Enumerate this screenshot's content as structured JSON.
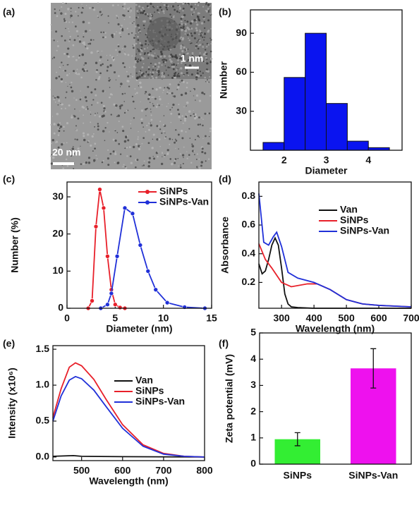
{
  "chart_data": [
    {
      "type": "image",
      "panel": "(a)",
      "scale_bar": "20 nm",
      "inset_scale_bar": "1 nm"
    },
    {
      "type": "histogram",
      "panel": "(b)",
      "xlabel": "Diameter",
      "ylabel": "Number",
      "bins": [
        1.5,
        2,
        2.5,
        3,
        3.5,
        4,
        4.5
      ],
      "values": [
        6,
        56,
        90,
        36,
        7,
        2
      ],
      "color": "#0a14f0",
      "xlim": [
        1.2,
        4.8
      ],
      "xticks": [
        2,
        3,
        4
      ],
      "ylim": [
        0,
        108
      ],
      "yticks": [
        30,
        60,
        90
      ]
    },
    {
      "type": "line",
      "panel": "(c)",
      "xlabel": "Diameter (nm)",
      "ylabel": "Number (%)",
      "markers": true,
      "xlim": [
        0,
        15
      ],
      "xticks": [
        0,
        5,
        10,
        15
      ],
      "ylim": [
        0,
        34
      ],
      "yticks": [
        0,
        10,
        20,
        30
      ],
      "series": [
        {
          "name": "SiNPs",
          "color": "#e8202a",
          "x": [
            2.2,
            2.6,
            3.0,
            3.4,
            3.8,
            4.2,
            4.6,
            5.0,
            5.5,
            6.0
          ],
          "values": [
            0,
            2,
            22,
            32,
            27,
            14,
            5,
            1,
            0.2,
            0
          ]
        },
        {
          "name": "SiNPs-Van",
          "color": "#2030d8",
          "x": [
            3.5,
            4.2,
            4.6,
            5.2,
            6.0,
            6.8,
            7.6,
            8.4,
            9.2,
            10.4,
            12.2,
            14.3
          ],
          "values": [
            0,
            1,
            4,
            14,
            27,
            25.5,
            17,
            10,
            5,
            1.5,
            0.3,
            0
          ]
        }
      ]
    },
    {
      "type": "line",
      "panel": "(d)",
      "xlabel": "Wavelength (nm)",
      "ylabel": "Absorbance",
      "markers": false,
      "xlim": [
        230,
        700
      ],
      "xticks": [
        300,
        400,
        500,
        600,
        700
      ],
      "ylim": [
        0.02,
        0.9
      ],
      "yticks": [
        {
          "value": 0.2,
          "label": "0.2"
        },
        {
          "value": 0.4,
          "label": "0.4"
        },
        {
          "value": 0.6,
          "label": "0.6"
        },
        {
          "value": 0.8,
          "label": "0.8"
        }
      ],
      "series": [
        {
          "name": "Van",
          "color": "#111111",
          "x": [
            230,
            240,
            250,
            260,
            270,
            280,
            290,
            300,
            310,
            320,
            330,
            350,
            400,
            500,
            700
          ],
          "values": [
            0.33,
            0.26,
            0.28,
            0.36,
            0.46,
            0.51,
            0.46,
            0.3,
            0.12,
            0.05,
            0.03,
            0.025,
            0.02,
            0.02,
            0.02
          ]
        },
        {
          "name": "SiNPs",
          "color": "#e8202a",
          "x": [
            230,
            250,
            270,
            300,
            330,
            380,
            410,
            450,
            500,
            550,
            600,
            700
          ],
          "values": [
            0.47,
            0.36,
            0.3,
            0.2,
            0.17,
            0.19,
            0.19,
            0.15,
            0.08,
            0.05,
            0.04,
            0.03
          ]
        },
        {
          "name": "SiNPs-Van",
          "color": "#2030d8",
          "x": [
            230,
            245,
            260,
            275,
            285,
            300,
            320,
            350,
            400,
            450,
            500,
            550,
            600,
            700
          ],
          "values": [
            0.82,
            0.48,
            0.46,
            0.52,
            0.55,
            0.45,
            0.27,
            0.23,
            0.2,
            0.15,
            0.08,
            0.05,
            0.04,
            0.03
          ]
        }
      ]
    },
    {
      "type": "line",
      "panel": "(e)",
      "xlabel": "Wavelength (nm)",
      "ylabel": "Intensity (x10⁶)",
      "markers": false,
      "xlim": [
        430,
        800
      ],
      "xticks": [
        500,
        600,
        700,
        800
      ],
      "ylim": [
        -0.05,
        1.55
      ],
      "yticks": [
        {
          "value": 0,
          "label": "0.0"
        },
        {
          "value": 0.5,
          "label": "0.5"
        },
        {
          "value": 1,
          "label": "1.0"
        },
        {
          "value": 1.5,
          "label": "1.5"
        }
      ],
      "series": [
        {
          "name": "Van",
          "color": "#111111",
          "x": [
            430,
            480,
            500,
            600,
            800
          ],
          "values": [
            0.01,
            0.02,
            0.01,
            0.005,
            0
          ]
        },
        {
          "name": "SiNPs",
          "color": "#e8202a",
          "x": [
            430,
            450,
            470,
            485,
            500,
            530,
            560,
            600,
            650,
            700,
            750,
            800
          ],
          "values": [
            0.55,
            0.95,
            1.25,
            1.31,
            1.27,
            1.08,
            0.8,
            0.45,
            0.17,
            0.05,
            0.01,
            0
          ]
        },
        {
          "name": "SiNPs-Van",
          "color": "#2030d8",
          "x": [
            430,
            450,
            470,
            485,
            500,
            530,
            560,
            600,
            650,
            700,
            750,
            800
          ],
          "values": [
            0.5,
            0.85,
            1.07,
            1.12,
            1.09,
            0.93,
            0.7,
            0.4,
            0.15,
            0.04,
            0.01,
            0
          ]
        }
      ]
    },
    {
      "type": "bar",
      "panel": "(f)",
      "ylabel": "Zeta potential (mV)",
      "categories": [
        "SiNPs",
        "SiNPs-Van"
      ],
      "values": [
        0.95,
        3.65
      ],
      "errors": [
        0.25,
        0.75
      ],
      "colors": [
        "#33ee33",
        "#ee11ee"
      ],
      "ylim": [
        0,
        5
      ],
      "yticks": [
        0,
        1,
        2,
        3,
        4,
        5
      ]
    }
  ]
}
